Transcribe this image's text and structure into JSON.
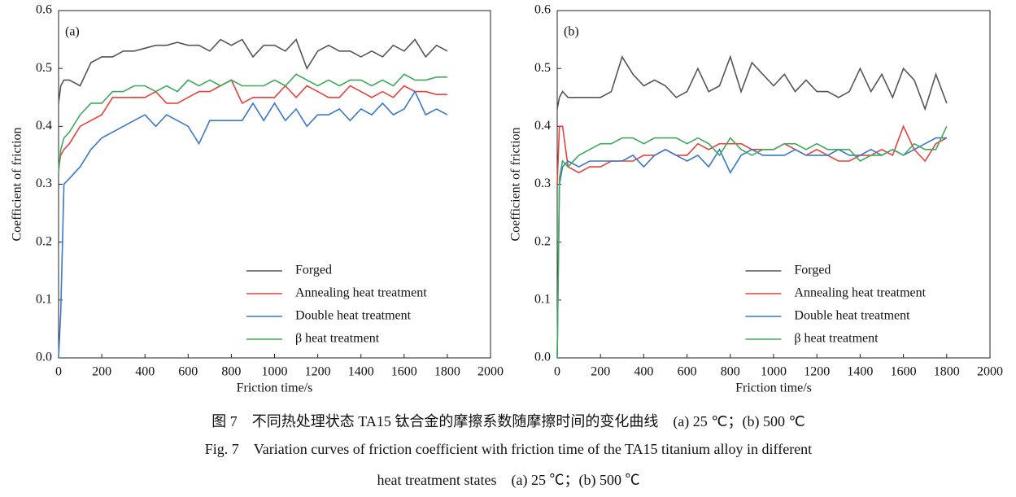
{
  "chart_data": [
    {
      "type": "line",
      "annotation": "(a)",
      "xlabel": "Friction time/s",
      "ylabel": "Coefficient of friction",
      "x": [
        0,
        10,
        25,
        50,
        100,
        150,
        200,
        250,
        300,
        350,
        400,
        450,
        500,
        550,
        600,
        650,
        700,
        750,
        800,
        850,
        900,
        950,
        1000,
        1050,
        1100,
        1150,
        1200,
        1250,
        1300,
        1350,
        1400,
        1450,
        1500,
        1550,
        1600,
        1650,
        1700,
        1750,
        1800
      ],
      "series": [
        {
          "name": "Forged",
          "color": "#555555",
          "values": [
            0.44,
            0.47,
            0.48,
            0.48,
            0.47,
            0.51,
            0.52,
            0.52,
            0.53,
            0.53,
            0.535,
            0.54,
            0.54,
            0.545,
            0.54,
            0.54,
            0.53,
            0.55,
            0.54,
            0.55,
            0.52,
            0.54,
            0.54,
            0.53,
            0.55,
            0.5,
            0.53,
            0.54,
            0.53,
            0.53,
            0.52,
            0.53,
            0.52,
            0.54,
            0.53,
            0.55,
            0.52,
            0.54,
            0.53
          ]
        },
        {
          "name": "Annealing heat treatment",
          "color": "#e8413c",
          "values": [
            0.33,
            0.35,
            0.36,
            0.37,
            0.4,
            0.41,
            0.42,
            0.45,
            0.45,
            0.45,
            0.45,
            0.46,
            0.44,
            0.44,
            0.45,
            0.46,
            0.46,
            0.47,
            0.48,
            0.44,
            0.45,
            0.45,
            0.45,
            0.47,
            0.45,
            0.47,
            0.46,
            0.45,
            0.45,
            0.47,
            0.46,
            0.45,
            0.46,
            0.45,
            0.47,
            0.46,
            0.46,
            0.455,
            0.455
          ]
        },
        {
          "name": "Double heat treatment",
          "color": "#3a78c9",
          "values": [
            0.0,
            0.08,
            0.3,
            0.31,
            0.33,
            0.36,
            0.38,
            0.39,
            0.4,
            0.41,
            0.42,
            0.4,
            0.42,
            0.41,
            0.4,
            0.37,
            0.41,
            0.41,
            0.41,
            0.41,
            0.44,
            0.41,
            0.44,
            0.41,
            0.43,
            0.4,
            0.42,
            0.42,
            0.43,
            0.41,
            0.43,
            0.42,
            0.44,
            0.42,
            0.43,
            0.46,
            0.42,
            0.43,
            0.42
          ]
        },
        {
          "name": "β heat treatment",
          "color": "#3daa5a",
          "values": [
            0.32,
            0.36,
            0.38,
            0.39,
            0.42,
            0.44,
            0.44,
            0.46,
            0.46,
            0.47,
            0.47,
            0.46,
            0.47,
            0.46,
            0.48,
            0.47,
            0.48,
            0.47,
            0.48,
            0.47,
            0.47,
            0.47,
            0.48,
            0.47,
            0.49,
            0.48,
            0.47,
            0.48,
            0.47,
            0.48,
            0.48,
            0.47,
            0.48,
            0.47,
            0.49,
            0.48,
            0.48,
            0.485,
            0.485
          ]
        }
      ],
      "xlim": [
        0,
        2000
      ],
      "ylim": [
        0,
        0.6
      ],
      "xticks": [
        0,
        200,
        400,
        600,
        800,
        1000,
        1200,
        1400,
        1600,
        1800,
        2000
      ],
      "yticks": [
        {
          "value": 0,
          "label": "0.0"
        },
        0.1,
        0.2,
        0.3,
        0.4,
        0.5,
        0.6
      ],
      "legend": "lower center"
    },
    {
      "type": "line",
      "annotation": "(b)",
      "xlabel": "Friction time/s",
      "ylabel": "Coefficient of friction",
      "x": [
        0,
        10,
        25,
        50,
        100,
        150,
        200,
        250,
        300,
        350,
        400,
        450,
        500,
        550,
        600,
        650,
        700,
        750,
        800,
        850,
        900,
        950,
        1000,
        1050,
        1100,
        1150,
        1200,
        1250,
        1300,
        1350,
        1400,
        1450,
        1500,
        1550,
        1600,
        1650,
        1700,
        1750,
        1800
      ],
      "series": [
        {
          "name": "Forged",
          "color": "#555555",
          "values": [
            0.43,
            0.45,
            0.46,
            0.45,
            0.45,
            0.45,
            0.45,
            0.46,
            0.52,
            0.49,
            0.47,
            0.48,
            0.47,
            0.45,
            0.46,
            0.5,
            0.46,
            0.47,
            0.52,
            0.46,
            0.51,
            0.49,
            0.47,
            0.49,
            0.46,
            0.48,
            0.46,
            0.46,
            0.45,
            0.46,
            0.5,
            0.46,
            0.49,
            0.45,
            0.5,
            0.48,
            0.43,
            0.49,
            0.44
          ]
        },
        {
          "name": "Annealing heat treatment",
          "color": "#e8413c",
          "values": [
            0.3,
            0.4,
            0.4,
            0.33,
            0.32,
            0.33,
            0.33,
            0.34,
            0.34,
            0.34,
            0.35,
            0.35,
            0.36,
            0.35,
            0.35,
            0.37,
            0.36,
            0.37,
            0.37,
            0.37,
            0.36,
            0.36,
            0.36,
            0.37,
            0.36,
            0.35,
            0.36,
            0.35,
            0.34,
            0.34,
            0.35,
            0.35,
            0.36,
            0.35,
            0.4,
            0.36,
            0.34,
            0.37,
            0.38
          ]
        },
        {
          "name": "Double heat treatment",
          "color": "#3a78c9",
          "values": [
            0.0,
            0.3,
            0.33,
            0.34,
            0.33,
            0.34,
            0.34,
            0.34,
            0.34,
            0.35,
            0.33,
            0.35,
            0.36,
            0.35,
            0.34,
            0.35,
            0.33,
            0.36,
            0.32,
            0.35,
            0.36,
            0.35,
            0.35,
            0.35,
            0.36,
            0.35,
            0.35,
            0.35,
            0.36,
            0.35,
            0.35,
            0.36,
            0.35,
            0.36,
            0.35,
            0.36,
            0.37,
            0.38,
            0.38
          ]
        },
        {
          "name": "β heat treatment",
          "color": "#3daa5a",
          "values": [
            0.0,
            0.31,
            0.34,
            0.33,
            0.35,
            0.36,
            0.37,
            0.37,
            0.38,
            0.38,
            0.37,
            0.38,
            0.38,
            0.38,
            0.37,
            0.38,
            0.37,
            0.35,
            0.38,
            0.36,
            0.35,
            0.36,
            0.36,
            0.37,
            0.37,
            0.36,
            0.37,
            0.36,
            0.36,
            0.36,
            0.34,
            0.35,
            0.35,
            0.36,
            0.35,
            0.37,
            0.36,
            0.36,
            0.4
          ]
        }
      ],
      "xlim": [
        0,
        2000
      ],
      "ylim": [
        0,
        0.6
      ],
      "xticks": [
        0,
        200,
        400,
        600,
        800,
        1000,
        1200,
        1400,
        1600,
        1800,
        2000
      ],
      "yticks": [
        {
          "value": 0,
          "label": "0.0"
        },
        0.1,
        0.2,
        0.3,
        0.4,
        0.5,
        0.6
      ],
      "legend": "lower center"
    }
  ],
  "caption": {
    "zh": "图 7　不同热处理状态 TA15 钛合金的摩擦系数随摩擦时间的变化曲线　(a) 25 ℃；(b) 500 ℃",
    "en_line1": "Fig. 7　Variation curves of friction coefficient with friction time of the TA15 titanium alloy in different",
    "en_line2": "heat treatment states　(a) 25 ℃；(b) 500 ℃"
  }
}
